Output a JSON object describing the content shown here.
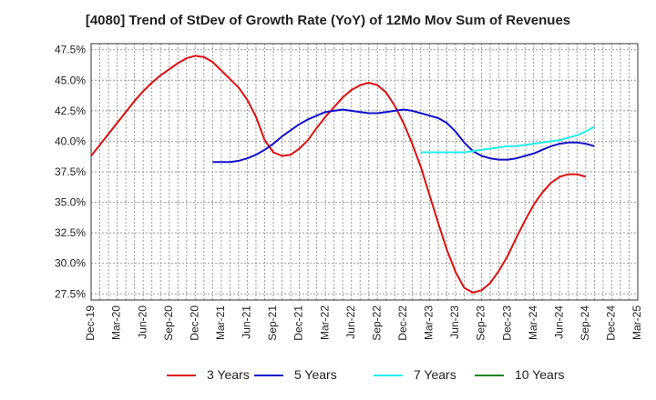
{
  "chart_data": {
    "type": "line",
    "title": "[4080]  Trend of StDev of Growth Rate (YoY) of 12Mo Mov Sum of Revenues",
    "xlabel": "",
    "ylabel": "",
    "ylim": [
      27.0,
      48.0
    ],
    "yticks": [
      27.5,
      30.0,
      32.5,
      35.0,
      37.5,
      40.0,
      42.5,
      45.0,
      47.5
    ],
    "ytick_labels": [
      "27.5%",
      "30.0%",
      "32.5%",
      "35.0%",
      "37.5%",
      "40.0%",
      "42.5%",
      "45.0%",
      "47.5%"
    ],
    "x_range": [
      0,
      63
    ],
    "xticks": [
      0,
      3,
      6,
      9,
      12,
      15,
      18,
      21,
      24,
      27,
      30,
      33,
      36,
      39,
      42,
      45,
      48,
      51,
      54,
      57,
      60,
      63
    ],
    "xtick_labels": [
      "Dec-19",
      "Mar-20",
      "Jun-20",
      "Sep-20",
      "Dec-20",
      "Mar-21",
      "Jun-21",
      "Sep-21",
      "Dec-21",
      "Mar-22",
      "Jun-22",
      "Sep-22",
      "Dec-22",
      "Mar-23",
      "Jun-23",
      "Sep-23",
      "Dec-23",
      "Mar-24",
      "Jun-24",
      "Sep-24",
      "Dec-24",
      "Mar-25"
    ],
    "grid": true,
    "legend_position": "bottom",
    "series": [
      {
        "name": "3 Years",
        "color": "#dd1111",
        "x_start": 0,
        "values": [
          38.8,
          39.7,
          40.6,
          41.5,
          42.4,
          43.3,
          44.1,
          44.8,
          45.4,
          45.9,
          46.4,
          46.8,
          47.0,
          46.9,
          46.5,
          45.8,
          45.1,
          44.4,
          43.4,
          42.0,
          40.1,
          39.1,
          38.8,
          38.9,
          39.4,
          40.1,
          41.1,
          42.0,
          42.8,
          43.6,
          44.2,
          44.6,
          44.8,
          44.6,
          44.0,
          42.9,
          41.5,
          39.8,
          37.9,
          35.6,
          33.3,
          31.1,
          29.3,
          28.0,
          27.6,
          27.8,
          28.4,
          29.4,
          30.6,
          32.1,
          33.5,
          34.8,
          35.8,
          36.6,
          37.1,
          37.3,
          37.3,
          37.1
        ]
      },
      {
        "name": "5 Years",
        "color": "#1111cc",
        "x_start": 14,
        "values": [
          38.3,
          38.3,
          38.3,
          38.4,
          38.6,
          38.9,
          39.3,
          39.8,
          40.4,
          40.9,
          41.4,
          41.8,
          42.1,
          42.4,
          42.5,
          42.6,
          42.5,
          42.4,
          42.3,
          42.3,
          42.4,
          42.5,
          42.6,
          42.5,
          42.3,
          42.1,
          41.9,
          41.5,
          40.8,
          39.9,
          39.2,
          38.8,
          38.6,
          38.5,
          38.5,
          38.6,
          38.8,
          39.0,
          39.3,
          39.6,
          39.8,
          39.9,
          39.9,
          39.8,
          39.6
        ]
      },
      {
        "name": "7 Years",
        "color": "#22eeee",
        "x_start": 38,
        "values": [
          39.1,
          39.1,
          39.1,
          39.1,
          39.1,
          39.1,
          39.2,
          39.3,
          39.4,
          39.5,
          39.6,
          39.6,
          39.7,
          39.8,
          39.9,
          40.0,
          40.1,
          40.3,
          40.5,
          40.8,
          41.2
        ]
      },
      {
        "name": "10 Years",
        "color": "#118811",
        "x_start": 0,
        "values": []
      }
    ]
  }
}
